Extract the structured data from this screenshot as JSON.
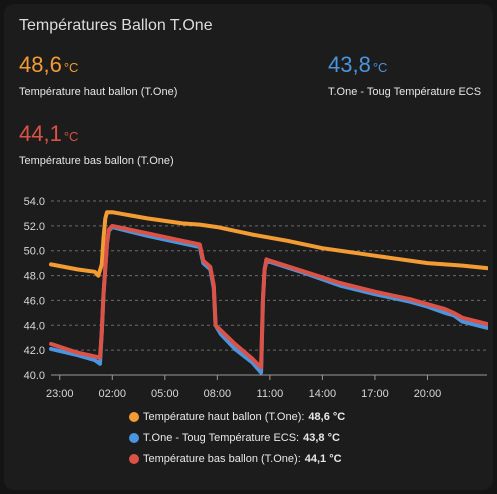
{
  "card": {
    "title": "Températures Ballon T.One"
  },
  "stats": [
    {
      "value": "48,6",
      "unit": "°C",
      "label": "Température haut ballon (T.One)",
      "color": "#f39c34"
    },
    {
      "value": "43,8",
      "unit": "°C",
      "label": "T.One - Toug Température ECS",
      "color": "#4a95de"
    },
    {
      "value": "44,1",
      "unit": "°C",
      "label": "Température bas ballon (T.One)",
      "color": "#dc5246"
    }
  ],
  "legend": [
    {
      "label": "Température haut ballon (T.One):",
      "value": "48,6 °C",
      "color": "#f39c34"
    },
    {
      "label": "T.One - Toug Température ECS:",
      "value": "43,8 °C",
      "color": "#4a95de"
    },
    {
      "label": "Température bas ballon (T.One):",
      "value": "44,1 °C",
      "color": "#dc5246"
    }
  ],
  "chart_data": {
    "type": "line",
    "title": "",
    "xlabel": "",
    "ylabel": "",
    "xlim": [
      -1.5,
      23.4
    ],
    "ylim": [
      40,
      54
    ],
    "y_ticks": [
      "40.0",
      "42.0",
      "44.0",
      "46.0",
      "48.0",
      "50.0",
      "52.0",
      "54.0"
    ],
    "x_ticks": [
      {
        "label": "23:00",
        "value": -1
      },
      {
        "label": "02:00",
        "value": 2
      },
      {
        "label": "05:00",
        "value": 5
      },
      {
        "label": "08:00",
        "value": 8
      },
      {
        "label": "11:00",
        "value": 11
      },
      {
        "label": "14:00",
        "value": 14
      },
      {
        "label": "17:00",
        "value": 17
      },
      {
        "label": "20:00",
        "value": 20
      }
    ],
    "grid": true,
    "legend_position": "bottom",
    "series": [
      {
        "name": "Température haut ballon (T.One)",
        "color": "#f39c34",
        "points": [
          [
            -1.5,
            48.9
          ],
          [
            0,
            48.5
          ],
          [
            1,
            48.3
          ],
          [
            1.2,
            48.0
          ],
          [
            1.4,
            48.9
          ],
          [
            1.5,
            51.0
          ],
          [
            1.6,
            52.6
          ],
          [
            1.7,
            53.1
          ],
          [
            2,
            53.1
          ],
          [
            4,
            52.6
          ],
          [
            6,
            52.2
          ],
          [
            7,
            52.1
          ],
          [
            8,
            51.9
          ],
          [
            10,
            51.3
          ],
          [
            12,
            50.8
          ],
          [
            14,
            50.2
          ],
          [
            16,
            49.8
          ],
          [
            18,
            49.4
          ],
          [
            20,
            49.0
          ],
          [
            22,
            48.8
          ],
          [
            23.4,
            48.6
          ]
        ]
      },
      {
        "name": "T.One - Toug Température ECS",
        "color": "#4a95de",
        "points": [
          [
            -1.5,
            42.1
          ],
          [
            0,
            41.6
          ],
          [
            1,
            41.2
          ],
          [
            1.3,
            40.9
          ],
          [
            1.4,
            43.5
          ],
          [
            1.5,
            46.5
          ],
          [
            1.6,
            48.6
          ],
          [
            1.7,
            50.6
          ],
          [
            1.8,
            51.6
          ],
          [
            2,
            51.9
          ],
          [
            4,
            51.2
          ],
          [
            6,
            50.6
          ],
          [
            7,
            50.3
          ],
          [
            7.2,
            49.0
          ],
          [
            7.6,
            48.5
          ],
          [
            7.8,
            47.0
          ],
          [
            7.9,
            44.0
          ],
          [
            8.2,
            43.3
          ],
          [
            9,
            42.1
          ],
          [
            10,
            41.0
          ],
          [
            10.5,
            40.2
          ],
          [
            10.6,
            46.0
          ],
          [
            10.7,
            48.5
          ],
          [
            10.8,
            49.1
          ],
          [
            11,
            49.1
          ],
          [
            13,
            48.2
          ],
          [
            15,
            47.2
          ],
          [
            17,
            46.5
          ],
          [
            19,
            45.9
          ],
          [
            20,
            45.5
          ],
          [
            21,
            45.0
          ],
          [
            21.5,
            44.8
          ],
          [
            22,
            44.3
          ],
          [
            23.4,
            43.8
          ]
        ]
      },
      {
        "name": "Température bas ballon (T.One)",
        "color": "#dc5246",
        "points": [
          [
            -1.5,
            42.5
          ],
          [
            0,
            41.8
          ],
          [
            1,
            41.5
          ],
          [
            1.3,
            41.4
          ],
          [
            1.4,
            43.5
          ],
          [
            1.5,
            46.5
          ],
          [
            1.6,
            48.6
          ],
          [
            1.7,
            50.6
          ],
          [
            1.8,
            51.7
          ],
          [
            2,
            52.0
          ],
          [
            4,
            51.4
          ],
          [
            6,
            50.8
          ],
          [
            7,
            50.5
          ],
          [
            7.2,
            49.2
          ],
          [
            7.6,
            48.7
          ],
          [
            7.8,
            47.2
          ],
          [
            7.9,
            44.0
          ],
          [
            8.2,
            43.6
          ],
          [
            9,
            42.5
          ],
          [
            10,
            41.3
          ],
          [
            10.5,
            40.6
          ],
          [
            10.6,
            46.0
          ],
          [
            10.7,
            48.5
          ],
          [
            10.8,
            49.3
          ],
          [
            11,
            49.2
          ],
          [
            13,
            48.3
          ],
          [
            15,
            47.4
          ],
          [
            17,
            46.7
          ],
          [
            19,
            46.1
          ],
          [
            20,
            45.7
          ],
          [
            21,
            45.3
          ],
          [
            21.5,
            45.0
          ],
          [
            22,
            44.6
          ],
          [
            23.4,
            44.1
          ]
        ]
      }
    ]
  }
}
